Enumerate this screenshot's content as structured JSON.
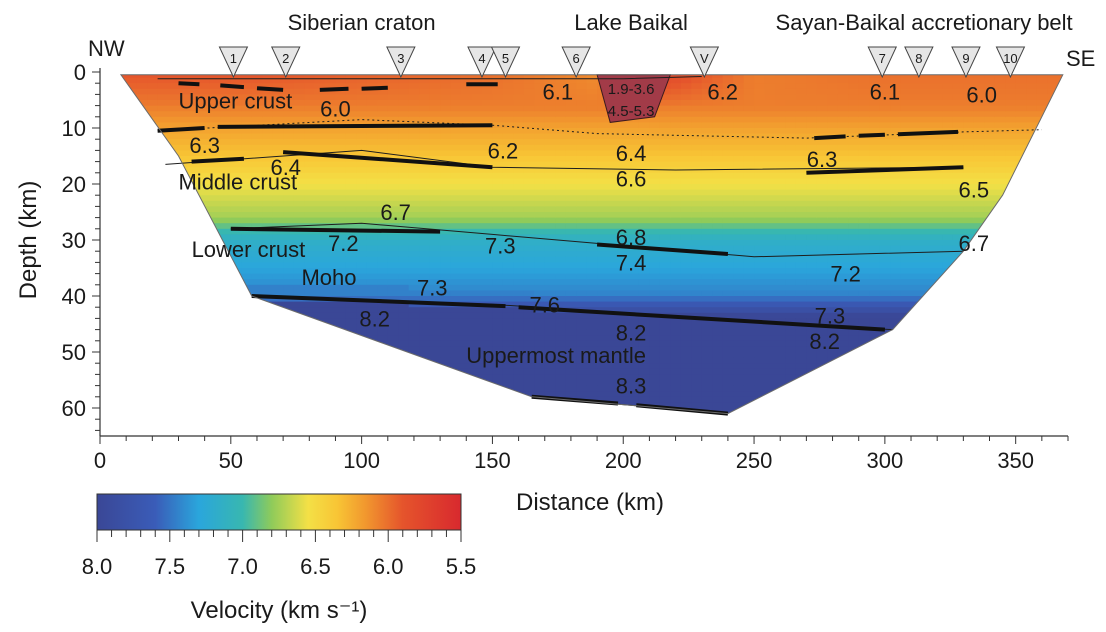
{
  "chart_data": {
    "type": "heatmap",
    "title": "",
    "xlabel": "Distance (km)",
    "ylabel": "Depth (km)",
    "xlim": [
      0,
      370
    ],
    "ylim": [
      0,
      65
    ],
    "y_inverted": true,
    "x_ticks": [
      0,
      50,
      100,
      150,
      200,
      250,
      300,
      350
    ],
    "y_ticks": [
      0,
      10,
      20,
      30,
      40,
      50,
      60
    ],
    "region_labels": [
      {
        "text": "Siberian craton",
        "x": 100,
        "pos": "above"
      },
      {
        "text": "Lake Baikal",
        "x": 203,
        "pos": "above"
      },
      {
        "text": "Sayan-Baikal accretionary belt",
        "x": 315,
        "pos": "above"
      }
    ],
    "direction_labels": {
      "left": "NW",
      "right": "SE"
    },
    "stations": [
      {
        "label": "1",
        "x": 51
      },
      {
        "label": "2",
        "x": 71
      },
      {
        "label": "3",
        "x": 115
      },
      {
        "label": "4",
        "x": 146
      },
      {
        "label": "5",
        "x": 155
      },
      {
        "label": "6",
        "x": 182
      },
      {
        "label": "V",
        "x": 231
      },
      {
        "label": "7",
        "x": 299
      },
      {
        "label": "8",
        "x": 313
      },
      {
        "label": "9",
        "x": 331
      },
      {
        "label": "10",
        "x": 348
      }
    ],
    "layer_labels": [
      {
        "text": "Upper crust",
        "x": 30,
        "depth": 6.5
      },
      {
        "text": "Middle crust",
        "x": 30,
        "depth": 21
      },
      {
        "text": "Lower crust",
        "x": 35,
        "depth": 33
      },
      {
        "text": "Moho",
        "x": 77,
        "depth": 38
      },
      {
        "text": "Uppermost mantle",
        "x": 140,
        "depth": 52
      }
    ],
    "velocity_labels": [
      {
        "value": "6.0",
        "x": 90,
        "depth": 6.5
      },
      {
        "value": "6.1",
        "x": 175,
        "depth": 3.5
      },
      {
        "value": "1.9-3.6",
        "x": 203,
        "depth": 3
      },
      {
        "value": "4.5-5.3",
        "x": 203,
        "depth": 7
      },
      {
        "value": "6.2",
        "x": 238,
        "depth": 3.5
      },
      {
        "value": "6.1",
        "x": 300,
        "depth": 3.5
      },
      {
        "value": "6.0",
        "x": 337,
        "depth": 4
      },
      {
        "value": "6.3",
        "x": 40,
        "depth": 13
      },
      {
        "value": "6.2",
        "x": 154,
        "depth": 14
      },
      {
        "value": "6.4",
        "x": 71,
        "depth": 17
      },
      {
        "value": "6.4",
        "x": 203,
        "depth": 14.5
      },
      {
        "value": "6.3",
        "x": 276,
        "depth": 15.5
      },
      {
        "value": "6.6",
        "x": 203,
        "depth": 19
      },
      {
        "value": "6.5",
        "x": 334,
        "depth": 21
      },
      {
        "value": "6.7",
        "x": 113,
        "depth": 25
      },
      {
        "value": "7.2",
        "x": 93,
        "depth": 30.5
      },
      {
        "value": "7.3",
        "x": 153,
        "depth": 31
      },
      {
        "value": "6.8",
        "x": 203,
        "depth": 29.5
      },
      {
        "value": "6.7",
        "x": 334,
        "depth": 30.5
      },
      {
        "value": "7.4",
        "x": 203,
        "depth": 34
      },
      {
        "value": "7.2",
        "x": 285,
        "depth": 36
      },
      {
        "value": "7.3",
        "x": 127,
        "depth": 38.5
      },
      {
        "value": "7.6",
        "x": 170,
        "depth": 41.5
      },
      {
        "value": "7.3",
        "x": 279,
        "depth": 43.5
      },
      {
        "value": "8.2",
        "x": 105,
        "depth": 44
      },
      {
        "value": "8.2",
        "x": 203,
        "depth": 46.5
      },
      {
        "value": "8.2",
        "x": 277,
        "depth": 48
      },
      {
        "value": "8.3",
        "x": 203,
        "depth": 56
      }
    ],
    "model_boundary": {
      "top": [
        [
          8,
          0.5
        ],
        [
          360,
          0.5
        ],
        [
          368,
          0.5
        ]
      ],
      "bottom": [
        [
          8,
          0.5
        ],
        [
          30,
          15
        ],
        [
          58,
          40
        ],
        [
          165,
          58
        ],
        [
          240,
          61
        ],
        [
          303,
          46
        ],
        [
          330,
          32
        ],
        [
          345,
          22
        ],
        [
          368,
          0.5
        ]
      ]
    },
    "interfaces": [
      {
        "name": "lower-upper-crust",
        "points": [
          [
            22,
            1.2
          ],
          [
            200,
            1.2
          ],
          [
            230,
            0.8
          ]
        ]
      },
      {
        "name": "upper-crust-base",
        "points": [
          [
            22,
            10.5
          ],
          [
            100,
            8.5
          ],
          [
            150,
            9.5
          ],
          [
            190,
            11
          ],
          [
            270,
            11.8
          ],
          [
            330,
            10.7
          ],
          [
            360,
            10.3
          ]
        ]
      },
      {
        "name": "middle-crust-top",
        "points": [
          [
            25,
            16.5
          ],
          [
            100,
            14
          ],
          [
            150,
            17
          ],
          [
            220,
            17.5
          ],
          [
            330,
            17
          ]
        ]
      },
      {
        "name": "lower-crust-top",
        "points": [
          [
            50,
            28
          ],
          [
            100,
            27
          ],
          [
            150,
            29
          ],
          [
            200,
            31
          ],
          [
            250,
            33
          ],
          [
            330,
            32
          ]
        ]
      },
      {
        "name": "moho",
        "points": [
          [
            58,
            40
          ],
          [
            150,
            41.5
          ],
          [
            200,
            43
          ],
          [
            260,
            45
          ],
          [
            303,
            46
          ]
        ]
      },
      {
        "name": "mantle-reflector",
        "points": [
          [
            165,
            58
          ],
          [
            240,
            61
          ]
        ]
      }
    ],
    "bold_segments": [
      [
        [
          30,
          2
        ],
        [
          38,
          2.2
        ]
      ],
      [
        [
          46,
          2.4
        ],
        [
          55,
          2.7
        ]
      ],
      [
        [
          60,
          2.9
        ],
        [
          70,
          3.2
        ]
      ],
      [
        [
          84,
          3.2
        ],
        [
          95,
          3
        ]
      ],
      [
        [
          100,
          3
        ],
        [
          110,
          2.8
        ]
      ],
      [
        [
          140,
          2.2
        ],
        [
          152,
          2.2
        ]
      ],
      [
        [
          22,
          10.5
        ],
        [
          40,
          10
        ]
      ],
      [
        [
          45,
          9.8
        ],
        [
          150,
          9.5
        ]
      ],
      [
        [
          273,
          11.8
        ],
        [
          285,
          11.5
        ]
      ],
      [
        [
          290,
          11.4
        ],
        [
          300,
          11.2
        ]
      ],
      [
        [
          305,
          11.1
        ],
        [
          328,
          10.7
        ]
      ],
      [
        [
          35,
          16
        ],
        [
          55,
          15.5
        ]
      ],
      [
        [
          70,
          14.3
        ],
        [
          150,
          17
        ]
      ],
      [
        [
          270,
          18
        ],
        [
          330,
          17
        ]
      ],
      [
        [
          50,
          28
        ],
        [
          130,
          28.5
        ]
      ],
      [
        [
          190,
          30.8
        ],
        [
          240,
          32.5
        ]
      ],
      [
        [
          58,
          40
        ],
        [
          155,
          41.8
        ]
      ],
      [
        [
          160,
          42
        ],
        [
          300,
          46
        ]
      ],
      [
        [
          165,
          58
        ],
        [
          198,
          59.2
        ]
      ],
      [
        [
          205,
          59.5
        ],
        [
          240,
          61
        ]
      ]
    ],
    "velocity_field": {
      "surface": [
        [
          10,
          5.9
        ],
        [
          60,
          5.9
        ],
        [
          150,
          6.0
        ],
        [
          190,
          6.1
        ],
        [
          215,
          5.8
        ],
        [
          250,
          6.05
        ],
        [
          300,
          6.0
        ],
        [
          350,
          6.0
        ]
      ],
      "depth_profile": [
        [
          0,
          5.95
        ],
        [
          6,
          6.05
        ],
        [
          10,
          6.2
        ],
        [
          15,
          6.35
        ],
        [
          20,
          6.55
        ],
        [
          26,
          6.75
        ],
        [
          30,
          7.15
        ],
        [
          35,
          7.3
        ],
        [
          40,
          7.45
        ],
        [
          44,
          8.05
        ],
        [
          65,
          8.2
        ]
      ]
    },
    "colorbar": {
      "label": "Velocity (km s⁻¹)",
      "min": 5.5,
      "max": 8.0,
      "reversed": true,
      "ticks": [
        "8.0",
        "7.5",
        "7.0",
        "6.5",
        "6.0",
        "5.5"
      ],
      "tick_values": [
        8.0,
        7.5,
        7.0,
        6.5,
        6.0,
        5.5
      ],
      "colors": [
        {
          "v": 8.0,
          "c": "#3a4796"
        },
        {
          "v": 7.6,
          "c": "#3a5cb8"
        },
        {
          "v": 7.3,
          "c": "#2aa6dc"
        },
        {
          "v": 7.0,
          "c": "#38b7b0"
        },
        {
          "v": 6.8,
          "c": "#8fcb5a"
        },
        {
          "v": 6.55,
          "c": "#f4e046"
        },
        {
          "v": 6.35,
          "c": "#f8c535"
        },
        {
          "v": 6.15,
          "c": "#f1962e"
        },
        {
          "v": 5.9,
          "c": "#e5542c"
        },
        {
          "v": 5.5,
          "c": "#d8292e"
        }
      ]
    },
    "lake": {
      "polygon": [
        [
          190,
          0.5
        ],
        [
          218,
          0.5
        ],
        [
          212,
          8
        ],
        [
          195,
          9
        ]
      ],
      "color": "#a23b48"
    }
  }
}
